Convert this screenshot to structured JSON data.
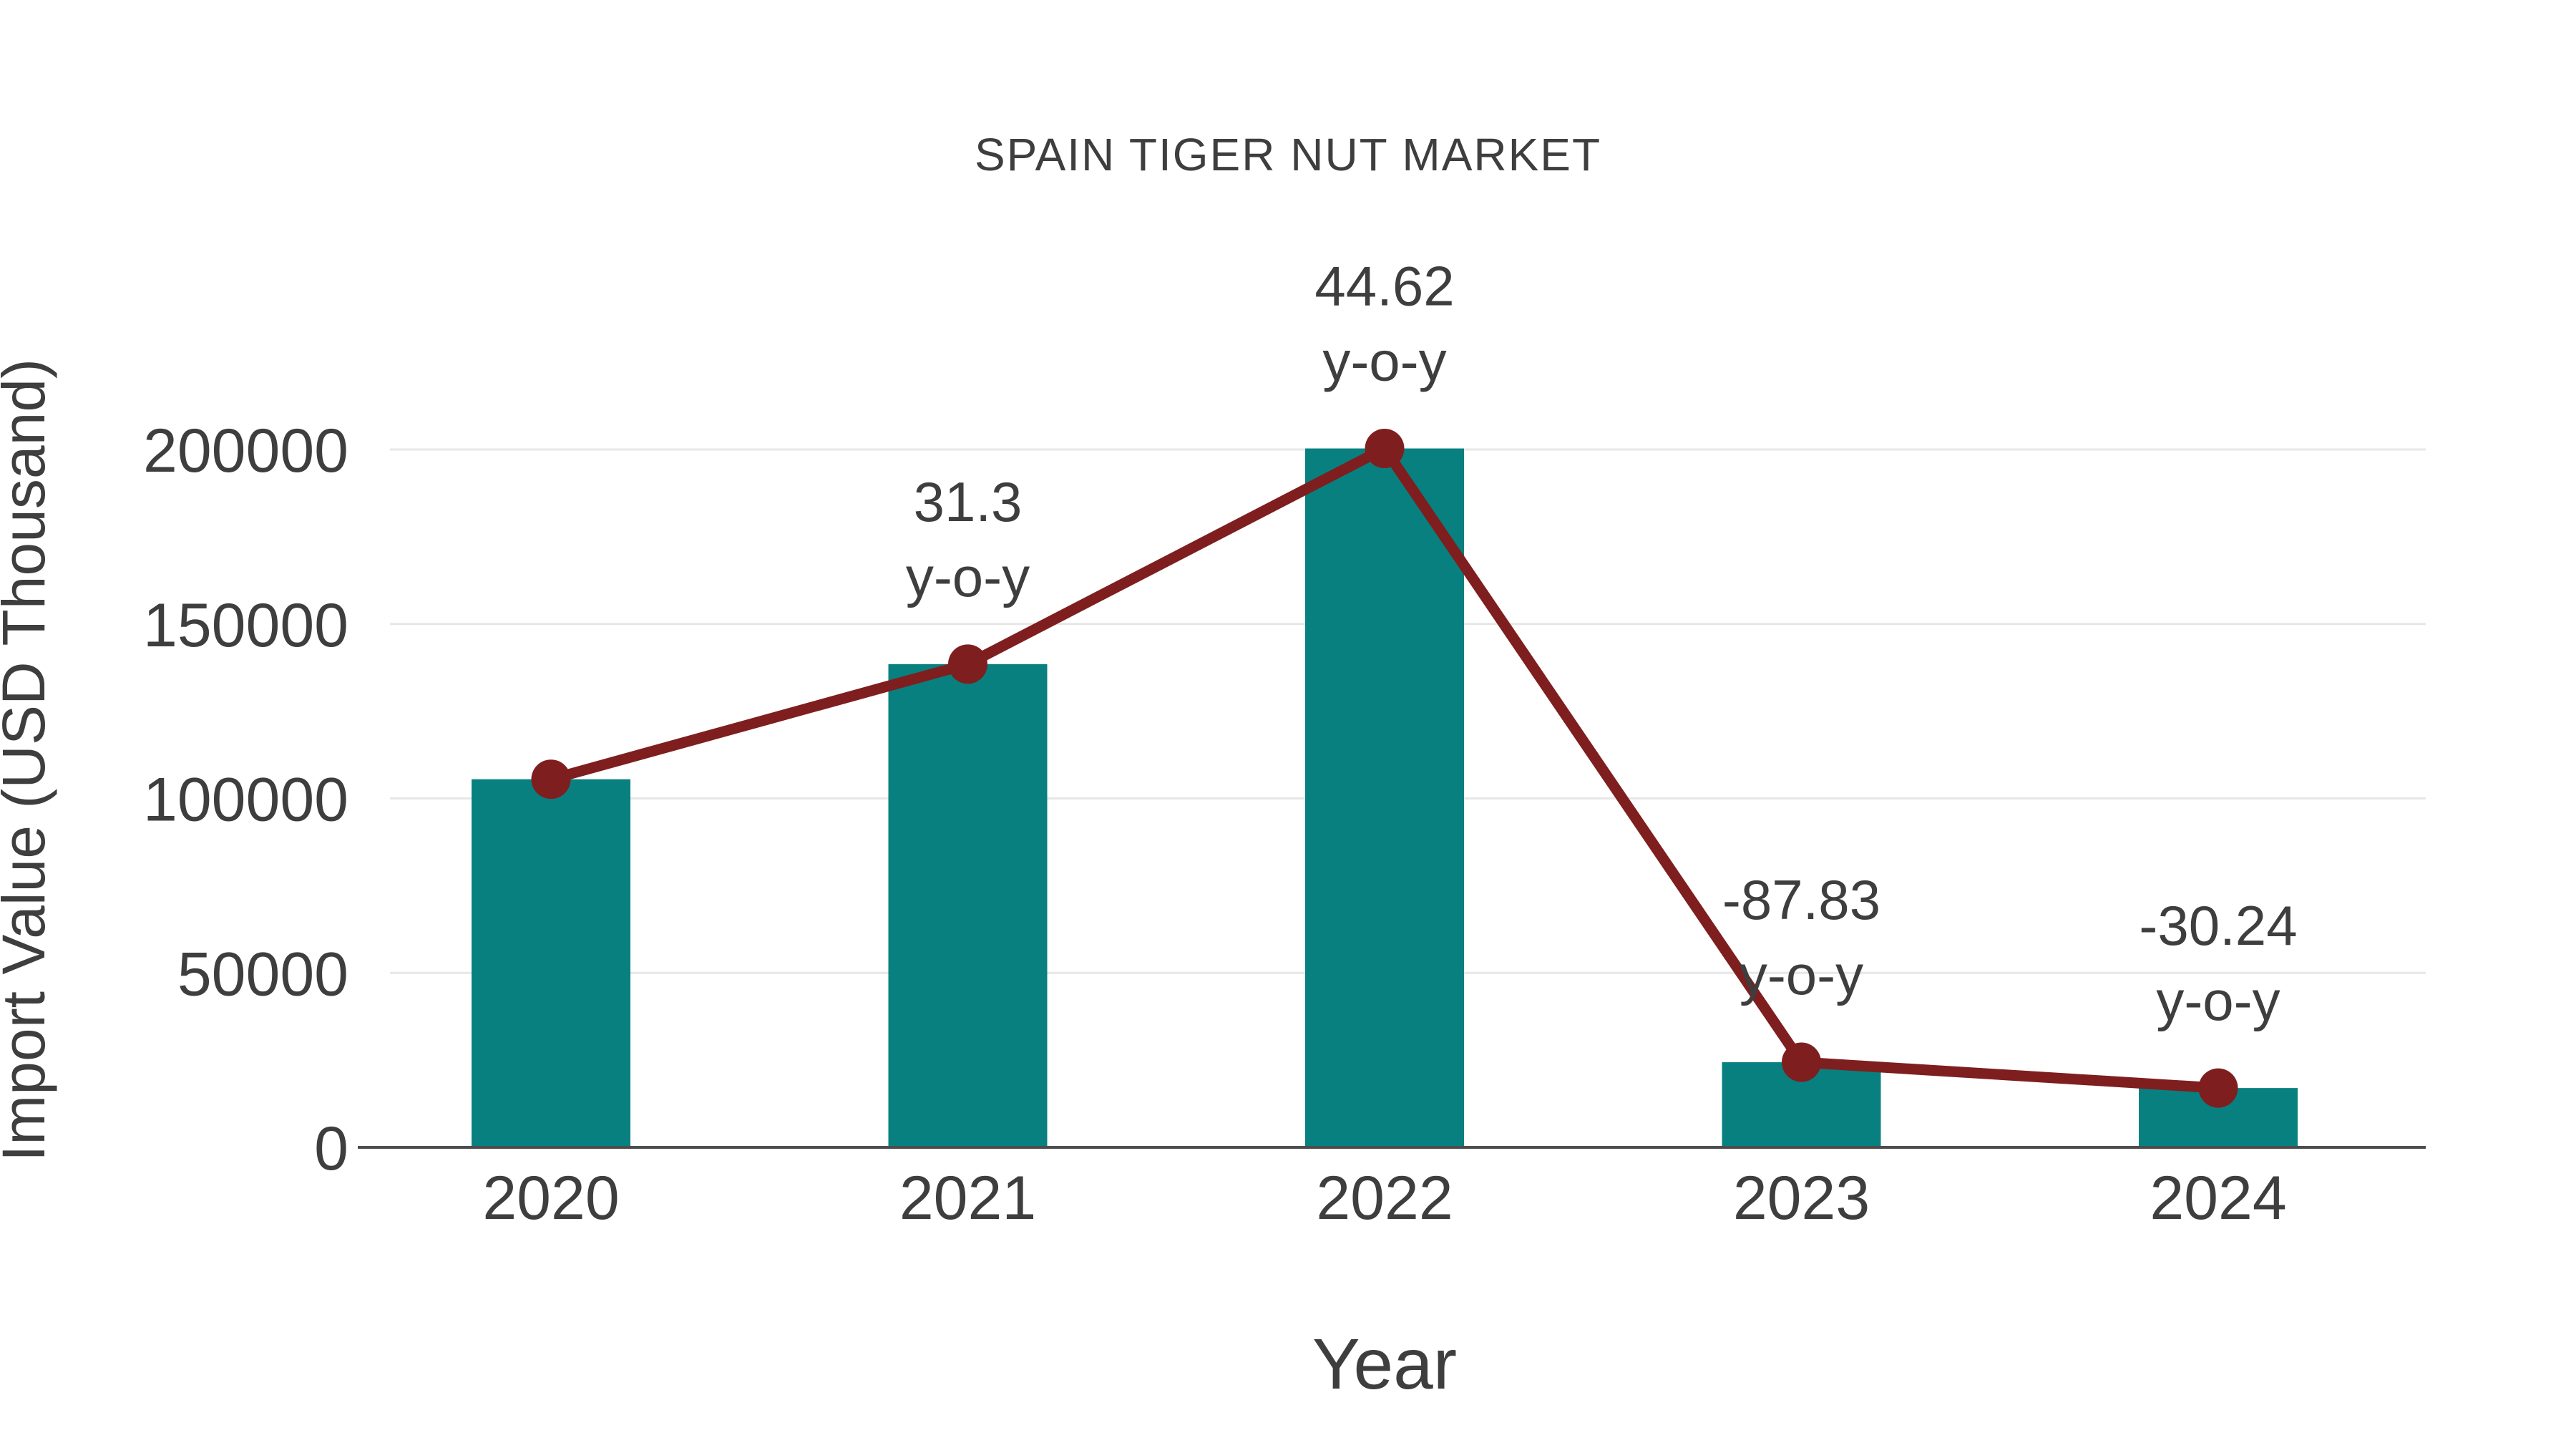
{
  "chart_data": {
    "type": "bar",
    "subtype": "bar-with-line-overlay",
    "title": "SPAIN TIGER NUT MARKET",
    "xlabel": "Year",
    "ylabel": "Import Value (USD Thousand)",
    "categories": [
      "2020",
      "2021",
      "2022",
      "2023",
      "2024"
    ],
    "series": [
      {
        "name": "Import Value",
        "type": "bar",
        "values": [
          105500,
          138500,
          200300,
          24400,
          17000
        ]
      },
      {
        "name": "y-o-y trend line",
        "type": "line",
        "values": [
          105500,
          138500,
          200300,
          24400,
          17000
        ]
      }
    ],
    "annotations": [
      {
        "category": "2021",
        "value_line": "31.3",
        "suffix_line": "y-o-y"
      },
      {
        "category": "2022",
        "value_line": "44.62",
        "suffix_line": "y-o-y"
      },
      {
        "category": "2023",
        "value_line": "-87.83",
        "suffix_line": "y-o-y"
      },
      {
        "category": "2024",
        "value_line": "-30.24",
        "suffix_line": "y-o-y"
      }
    ],
    "yticks": [
      0,
      50000,
      100000,
      150000,
      200000
    ],
    "ylim": [
      0,
      205000
    ],
    "grid": "horizontal",
    "legend_position": "none",
    "colors": {
      "bar": "#088080",
      "line": "#7f1e1e",
      "marker": "#7f1e1e",
      "text": "#3e3e3e",
      "gridline": "#e7e7e7",
      "axisline": "#4d4d4d",
      "background": "#ffffff"
    }
  }
}
